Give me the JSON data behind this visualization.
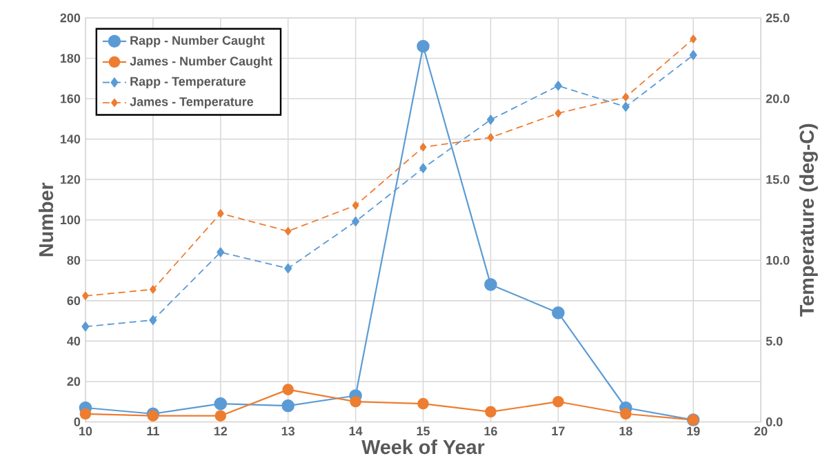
{
  "chart_data": {
    "type": "line",
    "xlabel": "Week of Year",
    "ylabel": "Number",
    "y2label": "Temperature (deg-C)",
    "x": [
      10,
      11,
      12,
      13,
      14,
      15,
      16,
      17,
      18,
      19
    ],
    "series": [
      {
        "name": "Rapp - Number Caught",
        "color": "#5b9bd5",
        "marker": "circle",
        "line_style": "solid",
        "values": [
          7,
          4,
          9,
          8,
          13,
          186,
          68,
          54,
          7,
          1
        ]
      },
      {
        "name": "James - Number Caught",
        "color": "#ed7d31",
        "marker": "circle",
        "line_style": "solid",
        "values": [
          4,
          3,
          3,
          16,
          10,
          9,
          5,
          10,
          4,
          1
        ]
      },
      {
        "name": "Rapp - Temperature",
        "color": "#5b9bd5",
        "marker": "diamond",
        "line_style": "dashed",
        "axis": "y2",
        "values": [
          5.9,
          6.3,
          10.5,
          9.5,
          12.4,
          15.7,
          18.7,
          20.8,
          19.5,
          22.7
        ]
      },
      {
        "name": "James - Temperature",
        "color": "#ed7d31",
        "marker": "diamond",
        "line_style": "dashed",
        "axis": "y2",
        "values": [
          7.8,
          8.2,
          12.9,
          11.8,
          13.4,
          17.0,
          17.6,
          19.1,
          20.1,
          23.7
        ]
      }
    ],
    "xlim": [
      10,
      20
    ],
    "xticks": [
      10,
      11,
      12,
      13,
      14,
      15,
      16,
      17,
      18,
      19,
      20
    ],
    "ylim": [
      0,
      200
    ],
    "yticks": [
      0,
      20,
      40,
      60,
      80,
      100,
      120,
      140,
      160,
      180,
      200
    ],
    "y2lim": [
      0,
      25
    ],
    "y2ticks": [
      {
        "value": 0,
        "label": "0.0"
      },
      {
        "value": 5,
        "label": "5.0"
      },
      {
        "value": 10,
        "label": "10.0"
      },
      {
        "value": 15,
        "label": "15.0"
      },
      {
        "value": 20,
        "label": "20.0"
      },
      {
        "value": 25,
        "label": "25.0"
      }
    ],
    "grid": true,
    "legend": "top left"
  }
}
